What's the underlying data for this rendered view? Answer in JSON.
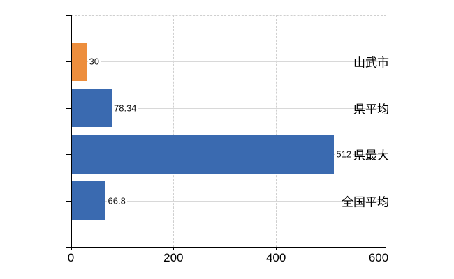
{
  "chart_data": {
    "type": "bar",
    "orientation": "horizontal",
    "title": "",
    "categories": [
      "山武市",
      "県平均",
      "県最大",
      "全国平均"
    ],
    "values": [
      30,
      78.34,
      512,
      66.8
    ],
    "value_labels": [
      "30",
      "78.34",
      "512",
      "66.8"
    ],
    "bar_colors": [
      "#ED8E3D",
      "#3A6AB0",
      "#3A6AB0",
      "#3A6AB0"
    ],
    "x_ticks": [
      0,
      200,
      400,
      600
    ],
    "x_tick_labels": [
      "0",
      "200",
      "400",
      "600"
    ],
    "xlim": [
      0,
      600
    ],
    "grid": true,
    "legend": null,
    "colors": {
      "bar_blue": "#3A6AB0",
      "bar_orange": "#ED8E3D",
      "gridline": "#D8D8D8",
      "axis": "#000000",
      "background": "#FFFFFF",
      "text": "#000000"
    }
  }
}
